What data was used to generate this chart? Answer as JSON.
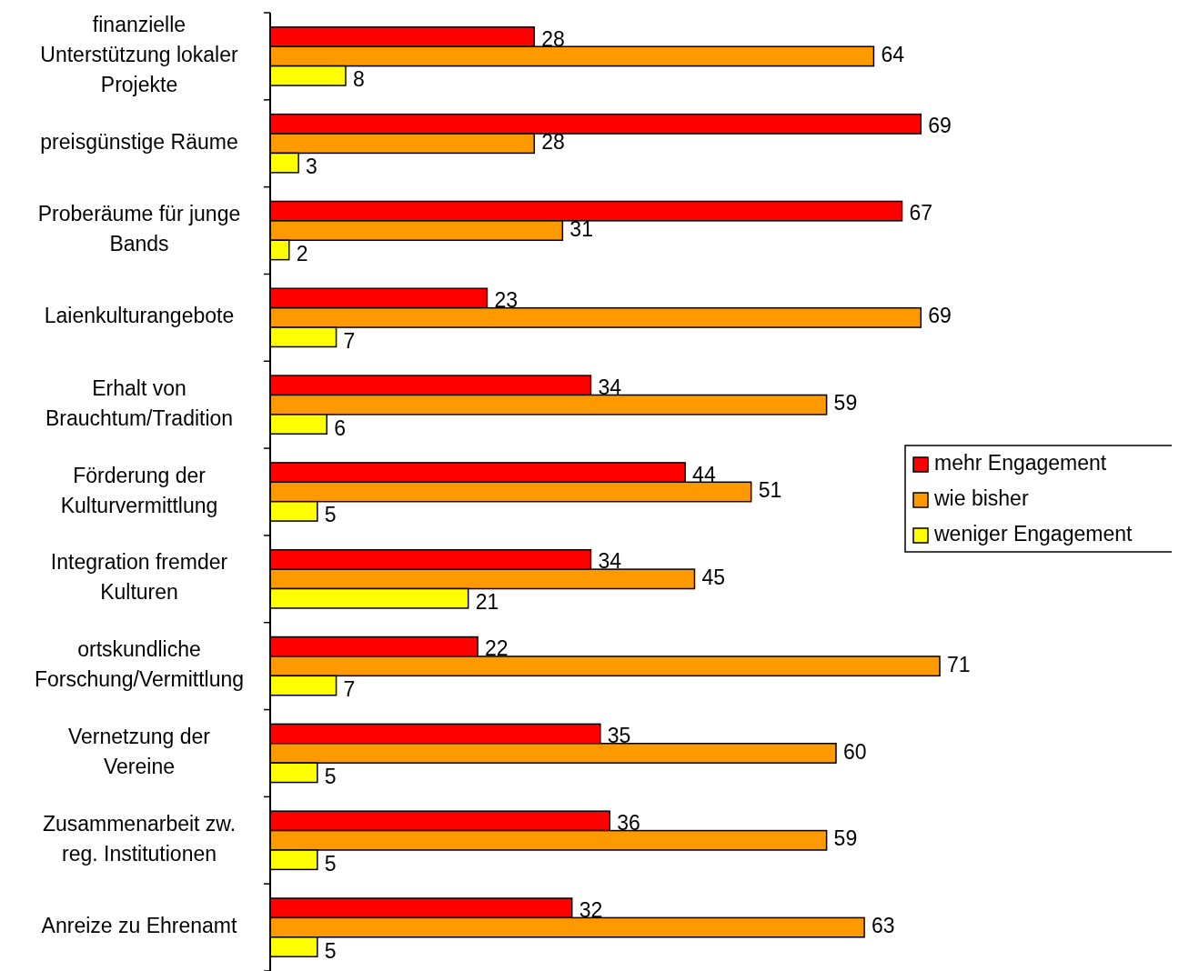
{
  "chart_data": {
    "type": "bar",
    "orientation": "horizontal",
    "categories": [
      "finanzielle Unterstützung lokaler Projekte",
      "preisgünstige Räume",
      "Proberäume für junge Bands",
      "Laienkulturangebote",
      "Erhalt von Brauchtum/Tradition",
      "Förderung der Kulturvermittlung",
      "Integration fremder Kulturen",
      "ortskundliche Forschung/Vermittlung",
      "Vernetzung der Vereine",
      "Zusammenarbeit zw. reg. Institutionen",
      "Anreize zu Ehrenamt"
    ],
    "series": [
      {
        "name": "mehr Engagement",
        "color": "#ff0000",
        "values": [
          28,
          69,
          67,
          23,
          34,
          44,
          34,
          22,
          35,
          36,
          32
        ]
      },
      {
        "name": "wie bisher",
        "color": "#ff9900",
        "values": [
          64,
          28,
          31,
          69,
          59,
          51,
          45,
          71,
          60,
          59,
          63
        ]
      },
      {
        "name": "weniger Engagement",
        "color": "#ffff00",
        "values": [
          8,
          3,
          2,
          7,
          6,
          5,
          21,
          7,
          5,
          5,
          5
        ]
      }
    ],
    "data_labels": true,
    "legend": "right"
  }
}
